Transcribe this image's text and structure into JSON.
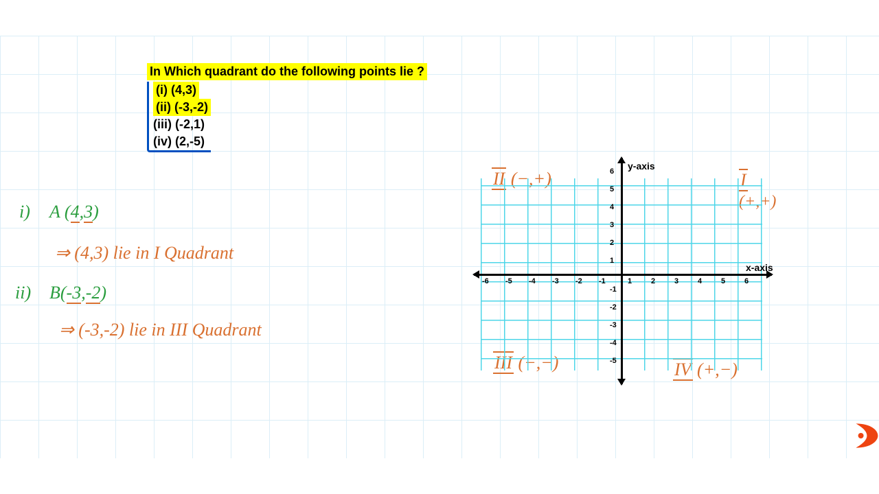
{
  "question": {
    "title": "In Which quadrant do the following points lie ?",
    "items": [
      {
        "label": "(i) (4,3)",
        "highlight": true
      },
      {
        "label": "(ii) (-3,-2)",
        "highlight": true
      },
      {
        "label": "(iii) (-2,1)",
        "highlight": false
      },
      {
        "label": "(iv) (2,-5)",
        "highlight": false
      }
    ]
  },
  "work": {
    "line1_prefix": "i)",
    "line1_point": "A (4,3)",
    "line2": "⇒ (4,3) lie in I Quadrant",
    "line3_prefix": "ii)",
    "line3_point": "B(-3,-2)",
    "line4": "⇒ (-3,-2) lie in III Quadrant"
  },
  "chart": {
    "x_axis_label": "x-axis",
    "y_axis_label": "y-axis",
    "x_ticks": [
      "-6",
      "-5",
      "-4",
      "-3",
      "-2",
      "-1",
      "1",
      "2",
      "3",
      "4",
      "5",
      "6"
    ],
    "x_tick_positions": [
      12,
      46,
      80,
      114,
      148,
      182,
      224,
      258,
      292,
      326,
      360,
      394
    ],
    "y_ticks": [
      "6",
      "5",
      "4",
      "3",
      "2",
      "1",
      "-1",
      "-2",
      "-3",
      "-4",
      "-5"
    ],
    "y_tick_positions": [
      4,
      30,
      56,
      82,
      108,
      134,
      176,
      202,
      228,
      254,
      280
    ],
    "grid_color": "#4dd6e8",
    "axis_color": "#000000",
    "quadrants": {
      "q1": {
        "roman": "I",
        "signs": "(+,+)"
      },
      "q2": {
        "roman": "II",
        "signs": "(−,+)"
      },
      "q3": {
        "roman": "III",
        "signs": "(−,−)"
      },
      "q4": {
        "roman": "IV",
        "signs": "(+,−)"
      }
    }
  },
  "logo_color": "#ee4411"
}
